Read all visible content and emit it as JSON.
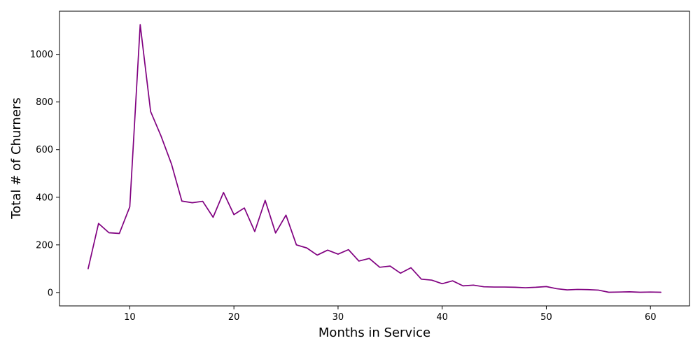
{
  "chart_data": {
    "type": "line",
    "title": "",
    "xlabel": "Months in Service",
    "ylabel": "Total # of Churners",
    "xlim": [
      3.25,
      63.75
    ],
    "ylim": [
      -56.25,
      1181.25
    ],
    "xticks": [
      10,
      20,
      30,
      40,
      50,
      60
    ],
    "yticks": [
      0,
      200,
      400,
      600,
      800,
      1000
    ],
    "grid": false,
    "legend": "none",
    "series": [
      {
        "color": "#800080",
        "x": [
          6,
          7,
          8,
          9,
          10,
          11,
          12,
          13,
          14,
          15,
          16,
          17,
          18,
          19,
          20,
          21,
          22,
          23,
          24,
          25,
          26,
          27,
          28,
          29,
          30,
          31,
          32,
          33,
          34,
          35,
          36,
          37,
          38,
          39,
          40,
          41,
          42,
          43,
          44,
          45,
          46,
          47,
          48,
          49,
          50,
          51,
          52,
          53,
          54,
          55,
          56,
          57,
          58,
          59,
          60,
          61
        ],
        "values": [
          100,
          290,
          251,
          248,
          360,
          1125,
          760,
          657,
          540,
          384,
          377,
          383,
          316,
          420,
          327,
          355,
          256,
          387,
          250,
          325,
          200,
          187,
          157,
          178,
          161,
          180,
          132,
          143,
          106,
          111,
          81,
          104,
          56,
          52,
          37,
          49,
          28,
          31,
          24,
          23,
          23,
          22,
          20,
          22,
          25,
          16,
          11,
          13,
          12,
          10,
          1,
          2,
          3,
          1,
          2,
          1
        ]
      }
    ]
  }
}
